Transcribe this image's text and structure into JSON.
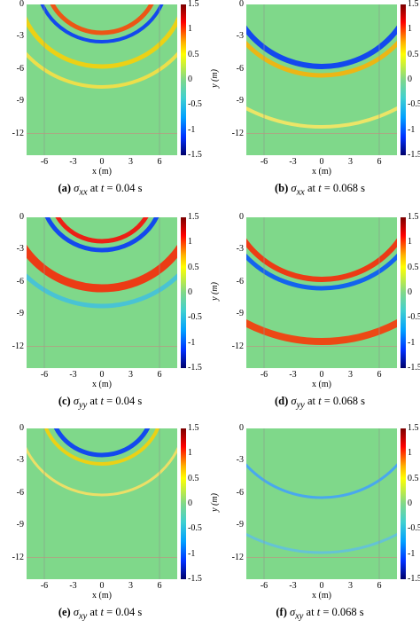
{
  "axis": {
    "ylabel": "y (m)",
    "xlabel": "x (m)",
    "yticks": [
      "0",
      "-3",
      "-6",
      "-9",
      "-12"
    ],
    "xticks": [
      "-6",
      "-3",
      "0",
      "3",
      "6"
    ],
    "cbticks": [
      "1.5",
      "1",
      "0.5",
      "0",
      "-0.5",
      "-1",
      "-1.5"
    ]
  },
  "panels": [
    {
      "letter": "(a)",
      "sym": "σ",
      "sub": "xx",
      "at": "at",
      "tvar": "t",
      "eq": "=",
      "val": "0.04 s"
    },
    {
      "letter": "(b)",
      "sym": "σ",
      "sub": "xx",
      "at": "at",
      "tvar": "t",
      "eq": "=",
      "val": "0.068 s"
    },
    {
      "letter": "(c)",
      "sym": "σ",
      "sub": "yy",
      "at": "at",
      "tvar": "t",
      "eq": "=",
      "val": "0.04 s"
    },
    {
      "letter": "(d)",
      "sym": "σ",
      "sub": "yy",
      "at": "at",
      "tvar": "t",
      "eq": "=",
      "val": "0.068 s"
    },
    {
      "letter": "(e)",
      "sym": "σ",
      "sub": "xy",
      "at": "at",
      "tvar": "t",
      "eq": "=",
      "val": "0.04 s"
    },
    {
      "letter": "(f)",
      "sym": "σ",
      "sub": "xy",
      "at": "at",
      "tvar": "t",
      "eq": "=",
      "val": "0.068 s"
    }
  ],
  "colormap": {
    "high": "#ff0000",
    "mid": "#7fd88a",
    "low": "#0030ff"
  },
  "chart_data": [
    {
      "type": "heatmap",
      "title": "",
      "xlim": [
        -7.5,
        7.5
      ],
      "ylim": [
        -14,
        0
      ],
      "clim": [
        -1.5,
        1.5
      ],
      "component": "σxx",
      "time_s": 0.04
    },
    {
      "type": "heatmap",
      "title": "",
      "xlim": [
        -7.5,
        7.5
      ],
      "ylim": [
        -14,
        0
      ],
      "clim": [
        -1.5,
        1.5
      ],
      "component": "σxx",
      "time_s": 0.068
    },
    {
      "type": "heatmap",
      "title": "",
      "xlim": [
        -7.5,
        7.5
      ],
      "ylim": [
        -14,
        0
      ],
      "clim": [
        -1.5,
        1.5
      ],
      "component": "σyy",
      "time_s": 0.04
    },
    {
      "type": "heatmap",
      "title": "",
      "xlim": [
        -7.5,
        7.5
      ],
      "ylim": [
        -14,
        0
      ],
      "clim": [
        -1.5,
        1.5
      ],
      "component": "σyy",
      "time_s": 0.068
    },
    {
      "type": "heatmap",
      "title": "",
      "xlim": [
        -7.5,
        7.5
      ],
      "ylim": [
        -14,
        0
      ],
      "clim": [
        -1.5,
        1.5
      ],
      "component": "σxy",
      "time_s": 0.04
    },
    {
      "type": "heatmap",
      "title": "",
      "xlim": [
        -7.5,
        7.5
      ],
      "ylim": [
        -14,
        0
      ],
      "clim": [
        -1.5,
        1.5
      ],
      "component": "σxy",
      "time_s": 0.068
    }
  ]
}
